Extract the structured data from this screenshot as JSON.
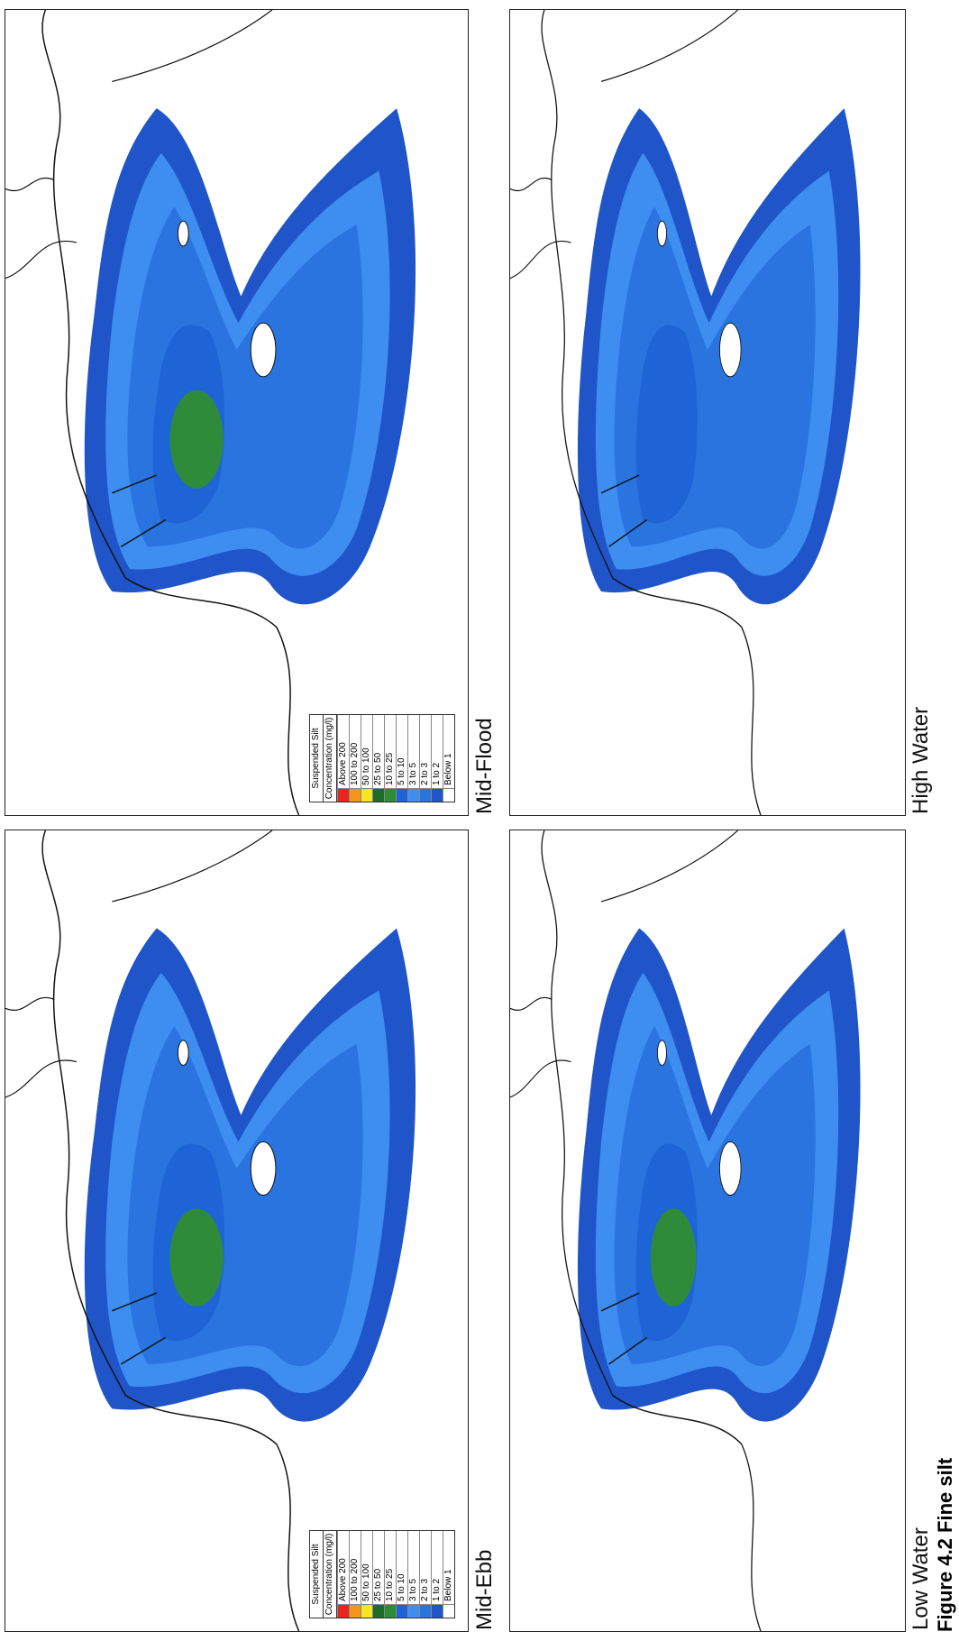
{
  "figure": {
    "caption": "Figure 4.2 Fine silt",
    "legend": {
      "title": "Suspended Silt",
      "subtitle": "Concentration (mg/l)",
      "items": [
        {
          "label": "Above 200",
          "color": "#e8251f"
        },
        {
          "label": "100 to 200",
          "color": "#f7941d"
        },
        {
          "label": "50 to 100",
          "color": "#f5e625"
        },
        {
          "label": "25 to 50",
          "color": "#1e6b2a"
        },
        {
          "label": "10 to 25",
          "color": "#2e8b3a"
        },
        {
          "label": "5 to 10",
          "color": "#1f64d6"
        },
        {
          "label": "3 to 5",
          "color": "#3d8ef0"
        },
        {
          "label": "2 to 3",
          "color": "#2a74e0"
        },
        {
          "label": "1 to 2",
          "color": "#1f55c8"
        },
        {
          "label": "Below 1",
          "color": "#ffffff"
        }
      ]
    },
    "panels": [
      {
        "label": "Mid-Ebb",
        "show_legend": true
      },
      {
        "label": "Mid-Flood",
        "show_legend": true
      },
      {
        "label": "Low Water",
        "show_legend": false
      },
      {
        "label": "High Water",
        "show_legend": false
      }
    ]
  }
}
